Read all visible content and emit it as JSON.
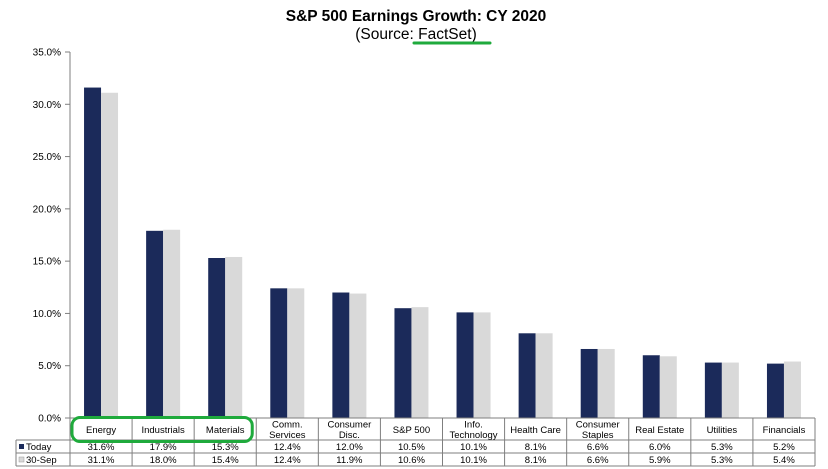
{
  "chart_data": {
    "type": "bar",
    "title": "S&P 500 Earnings Growth: CY 2020",
    "subtitle_prefix": "(Source: ",
    "subtitle_source": "FactSet",
    "subtitle_suffix": ")",
    "categories": [
      [
        "Energy"
      ],
      [
        "Industrials"
      ],
      [
        "Materials"
      ],
      [
        "Comm.",
        "Services"
      ],
      [
        "Consumer",
        "Disc."
      ],
      [
        "S&P 500"
      ],
      [
        "Info.",
        "Technology"
      ],
      [
        "Health Care"
      ],
      [
        "Consumer",
        "Staples"
      ],
      [
        "Real Estate"
      ],
      [
        "Utilities"
      ],
      [
        "Financials"
      ]
    ],
    "series": [
      {
        "name": "Today",
        "color": "#1b2a5a",
        "values": [
          31.6,
          17.9,
          15.3,
          12.4,
          12.0,
          10.5,
          10.1,
          8.1,
          6.6,
          6.0,
          5.3,
          5.2
        ],
        "labels": [
          "31.6%",
          "17.9%",
          "15.3%",
          "12.4%",
          "12.0%",
          "10.5%",
          "10.1%",
          "8.1%",
          "6.6%",
          "6.0%",
          "5.3%",
          "5.2%"
        ]
      },
      {
        "name": "30-Sep",
        "color": "#d9d9d9",
        "values": [
          31.1,
          18.0,
          15.4,
          12.4,
          11.9,
          10.6,
          10.1,
          8.1,
          6.6,
          5.9,
          5.3,
          5.4
        ],
        "labels": [
          "31.1%",
          "18.0%",
          "15.4%",
          "12.4%",
          "11.9%",
          "10.6%",
          "10.1%",
          "8.1%",
          "6.6%",
          "5.9%",
          "5.3%",
          "5.4%"
        ]
      }
    ],
    "y_ticks": [
      "0.0%",
      "5.0%",
      "10.0%",
      "15.0%",
      "20.0%",
      "25.0%",
      "30.0%",
      "35.0%"
    ],
    "ylim": [
      0,
      35
    ],
    "grid": false,
    "legend": "data-table",
    "highlight": {
      "categories": [
        0,
        1,
        2
      ],
      "color": "#1faa3c"
    },
    "source_underline_color": "#1faa3c"
  }
}
